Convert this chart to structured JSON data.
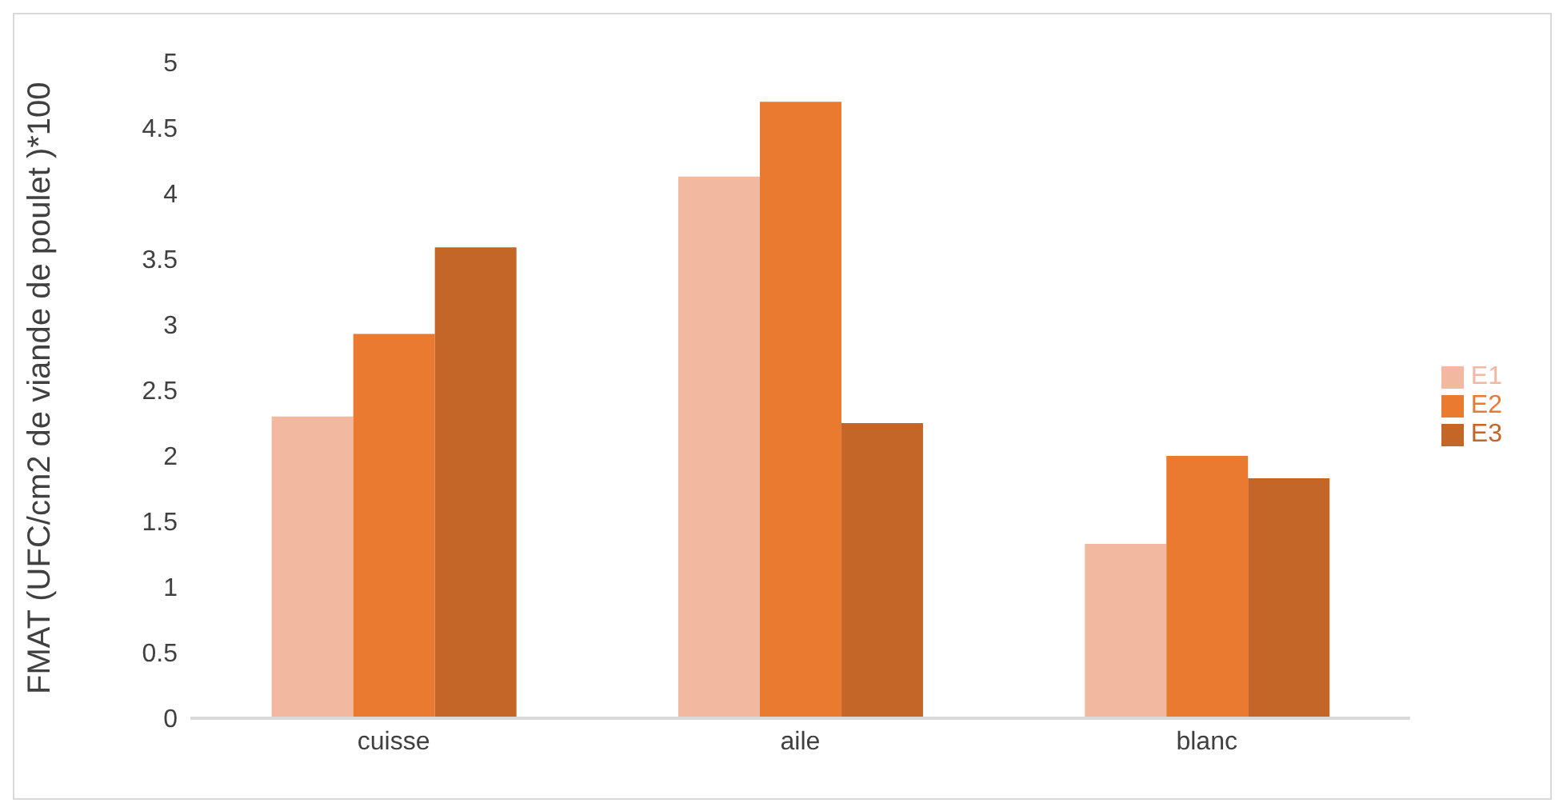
{
  "chart_data": {
    "type": "bar",
    "ylabel": "FMAT  (UFC/cm2 de viande de poulet )*100",
    "categories": [
      "cuisse",
      "aile",
      "blanc"
    ],
    "series": [
      {
        "name": "E1",
        "color": "#f3b8a0",
        "values": [
          2.3,
          4.13,
          1.33
        ]
      },
      {
        "name": "E2",
        "color": "#ea7a2f",
        "values": [
          2.93,
          4.7,
          2.0
        ]
      },
      {
        "name": "E3",
        "color": "#c46628",
        "values": [
          3.59,
          2.25,
          1.83
        ]
      }
    ],
    "ylim": [
      0,
      5
    ],
    "yticks": [
      0,
      0.5,
      1,
      1.5,
      2,
      2.5,
      3,
      3.5,
      4,
      4.5,
      5
    ],
    "grid": false,
    "legend": "right"
  }
}
